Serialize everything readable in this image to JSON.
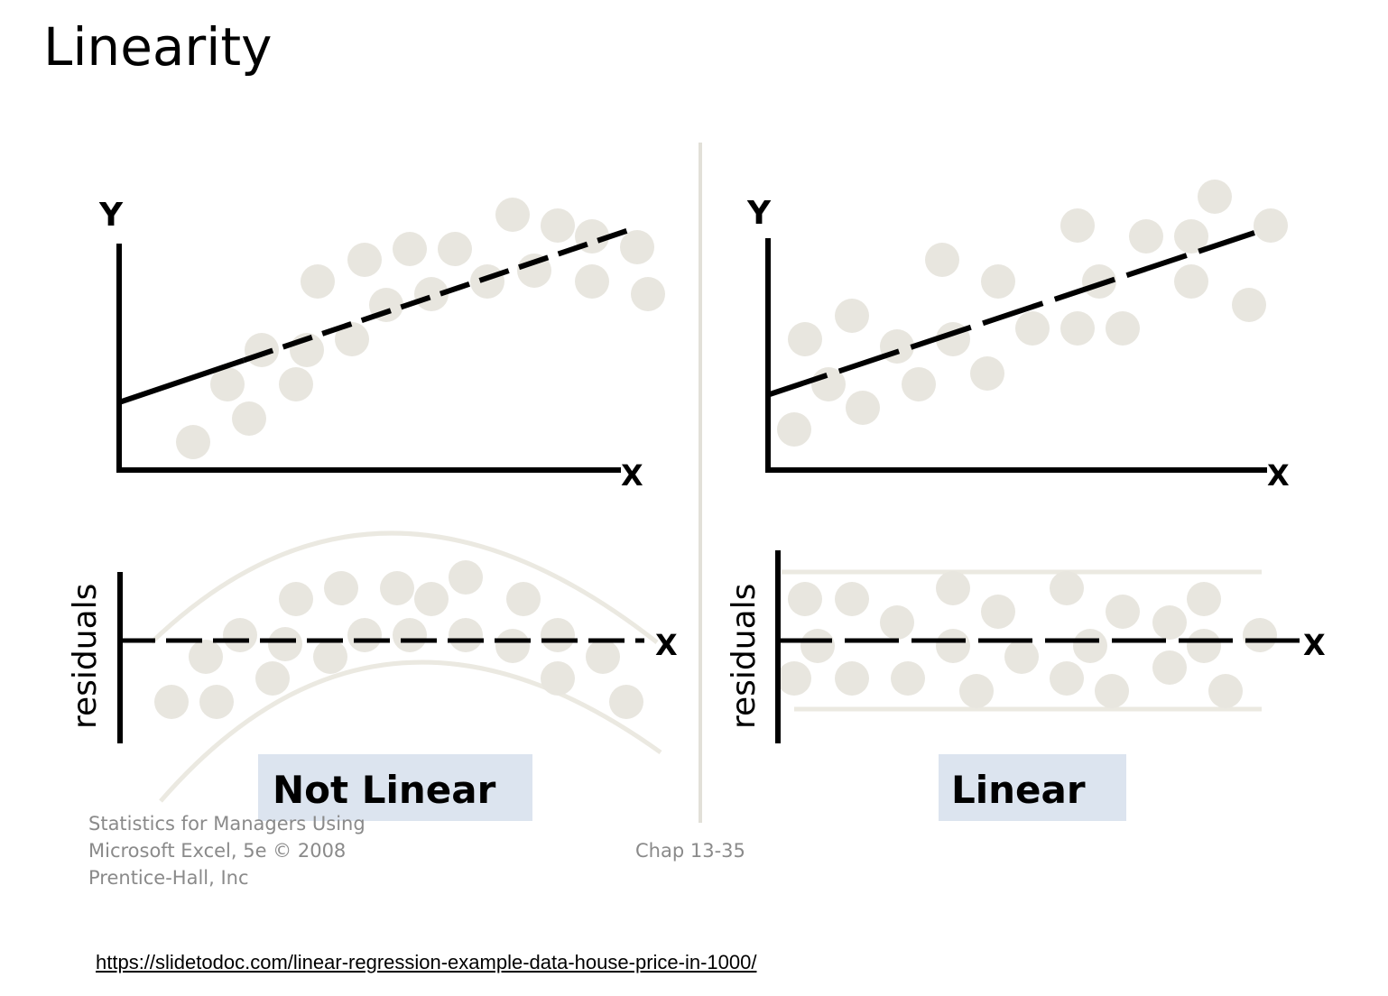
{
  "title": "Linearity",
  "left_panel": {
    "y_label": "Y",
    "x_label": "X",
    "residual_label": "residuals",
    "residual_x_label": "X",
    "caption": "Not Linear"
  },
  "right_panel": {
    "y_label": "Y",
    "x_label": "X",
    "residual_label": "residuals",
    "residual_x_label": "X",
    "caption": "Linear"
  },
  "footer": {
    "line1": "Statistics for Managers Using",
    "line2": "Microsoft Excel, 5e © 2008",
    "line3": "Prentice-Hall, Inc",
    "page": "Chap 13-35"
  },
  "source_url": "https://slidetodoc.com/linear-regression-example-data-house-price-in-1000/",
  "colors": {
    "dot": "#e8e6df",
    "band": "#ebe9e1",
    "caption_bg": "#dce4ef",
    "divider": "#e2e0d8"
  }
}
